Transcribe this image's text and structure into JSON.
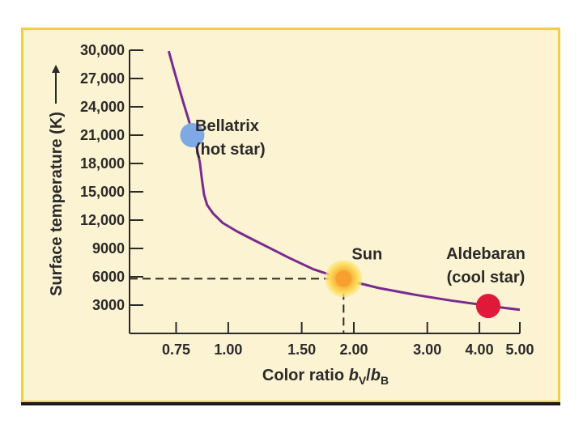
{
  "chart_data": {
    "type": "line",
    "ylabel": "Surface temperature (K)",
    "xlabel": {
      "prefix": "Color ratio ",
      "num_var": "b",
      "num_sub": "V",
      "slash": "/",
      "den_var": "b",
      "den_sub": "B"
    },
    "y_ticks": [
      {
        "value": 3000,
        "label": "3000"
      },
      {
        "value": 6000,
        "label": "6000"
      },
      {
        "value": 9000,
        "label": "9000"
      },
      {
        "value": 12000,
        "label": "12,000"
      },
      {
        "value": 15000,
        "label": "15,000"
      },
      {
        "value": 18000,
        "label": "18,000"
      },
      {
        "value": 21000,
        "label": "21,000"
      },
      {
        "value": 24000,
        "label": "24,000"
      },
      {
        "value": 27000,
        "label": "27,000"
      },
      {
        "value": 30000,
        "label": "30,000"
      }
    ],
    "x_ticks": [
      {
        "value": 0.75,
        "label": "0.75"
      },
      {
        "value": 1.0,
        "label": "1.00"
      },
      {
        "value": 1.5,
        "label": "1.50"
      },
      {
        "value": 2.0,
        "label": "2.00"
      },
      {
        "value": 3.0,
        "label": "3.00"
      },
      {
        "value": 4.0,
        "label": "4.00"
      },
      {
        "value": 5.0,
        "label": "5.00"
      }
    ],
    "x_scale": "log",
    "xlim": [
      0.58,
      5.0
    ],
    "ylim": [
      0,
      30000
    ],
    "series": [
      {
        "color": "#7a2a8f",
        "points": [
          [
            0.72,
            29900
          ],
          [
            0.74,
            28000
          ],
          [
            0.76,
            26200
          ],
          [
            0.78,
            24500
          ],
          [
            0.8,
            22900
          ],
          [
            0.82,
            21300
          ],
          [
            0.84,
            19700
          ],
          [
            0.855,
            18100
          ],
          [
            0.865,
            16300
          ],
          [
            0.875,
            14700
          ],
          [
            0.89,
            13600
          ],
          [
            0.92,
            12700
          ],
          [
            0.97,
            11700
          ],
          [
            1.05,
            10800
          ],
          [
            1.15,
            9900
          ],
          [
            1.25,
            9100
          ],
          [
            1.4,
            8000
          ],
          [
            1.6,
            6800
          ],
          [
            1.9,
            5700
          ],
          [
            2.3,
            4800
          ],
          [
            2.8,
            4100
          ],
          [
            3.4,
            3500
          ],
          [
            4.1,
            3000
          ],
          [
            4.6,
            2700
          ],
          [
            5.0,
            2500
          ]
        ]
      }
    ],
    "stars": [
      {
        "name": "Bellatrix",
        "desc": "(hot star)",
        "x": 0.82,
        "y": 21000,
        "color": "#7ea9e4"
      },
      {
        "name": "Sun",
        "desc": "",
        "x": 1.89,
        "y": 5800,
        "color": "#f7a030"
      },
      {
        "name": "Aldebaran",
        "desc": "(cool star)",
        "x": 4.2,
        "y": 2900,
        "color": "#e0193a"
      }
    ],
    "grid": false
  }
}
